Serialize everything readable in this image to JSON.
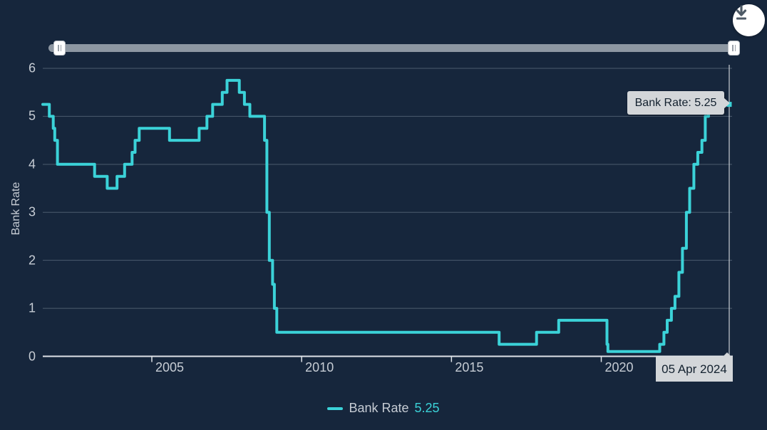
{
  "toolbar": {
    "download_icon": "download-icon"
  },
  "tooltip": {
    "text": "Bank Rate: 5.25",
    "date_label": "05 Apr 2024"
  },
  "legend": {
    "label": "Bank Rate",
    "value": "5.25"
  },
  "colors": {
    "background": "#16263c",
    "line": "#3bd2d8",
    "grid": "#4c5c6e",
    "axis": "#dfe3e8",
    "tick_text": "#c6ccd4",
    "tooltip_bg": "#d3d6d9",
    "tooltip_text": "#12202e",
    "slider_track": "#8d97a2",
    "crosshair": "#ccd2d8"
  },
  "chart_data": {
    "type": "line",
    "step": true,
    "title": "",
    "xlabel": "",
    "ylabel": "Bank Rate",
    "x_range": [
      2001.36,
      2024.27
    ],
    "ylim": [
      0,
      6
    ],
    "x_ticks": [
      "2005",
      "2010",
      "2015",
      "2020"
    ],
    "y_ticks": [
      "0",
      "1",
      "2",
      "3",
      "4",
      "5",
      "6"
    ],
    "grid": "horizontal",
    "legend_position": "bottom",
    "series": [
      {
        "name": "Bank Rate",
        "latest": {
          "date": "05 Apr 2024",
          "value": 5.25
        },
        "points": [
          [
            2001.36,
            5.25
          ],
          [
            2001.58,
            5.0
          ],
          [
            2001.71,
            4.75
          ],
          [
            2001.76,
            4.5
          ],
          [
            2001.85,
            4.0
          ],
          [
            2003.09,
            3.75
          ],
          [
            2003.51,
            3.5
          ],
          [
            2003.84,
            3.75
          ],
          [
            2004.09,
            4.0
          ],
          [
            2004.34,
            4.25
          ],
          [
            2004.44,
            4.5
          ],
          [
            2004.58,
            4.75
          ],
          [
            2005.59,
            4.5
          ],
          [
            2006.58,
            4.75
          ],
          [
            2006.84,
            5.0
          ],
          [
            2007.03,
            5.25
          ],
          [
            2007.35,
            5.5
          ],
          [
            2007.51,
            5.75
          ],
          [
            2007.92,
            5.5
          ],
          [
            2008.09,
            5.25
          ],
          [
            2008.27,
            5.0
          ],
          [
            2008.76,
            4.5
          ],
          [
            2008.84,
            3.0
          ],
          [
            2008.92,
            2.0
          ],
          [
            2009.03,
            1.5
          ],
          [
            2009.09,
            1.0
          ],
          [
            2009.17,
            0.5
          ],
          [
            2016.59,
            0.25
          ],
          [
            2017.84,
            0.5
          ],
          [
            2018.58,
            0.75
          ],
          [
            2020.19,
            0.25
          ],
          [
            2020.22,
            0.1
          ],
          [
            2021.95,
            0.25
          ],
          [
            2022.09,
            0.5
          ],
          [
            2022.2,
            0.75
          ],
          [
            2022.34,
            1.0
          ],
          [
            2022.46,
            1.25
          ],
          [
            2022.59,
            1.75
          ],
          [
            2022.71,
            2.25
          ],
          [
            2022.84,
            3.0
          ],
          [
            2022.95,
            3.5
          ],
          [
            2023.09,
            4.0
          ],
          [
            2023.22,
            4.25
          ],
          [
            2023.36,
            4.5
          ],
          [
            2023.47,
            5.0
          ],
          [
            2023.58,
            5.25
          ],
          [
            2024.27,
            5.25
          ]
        ]
      }
    ]
  }
}
